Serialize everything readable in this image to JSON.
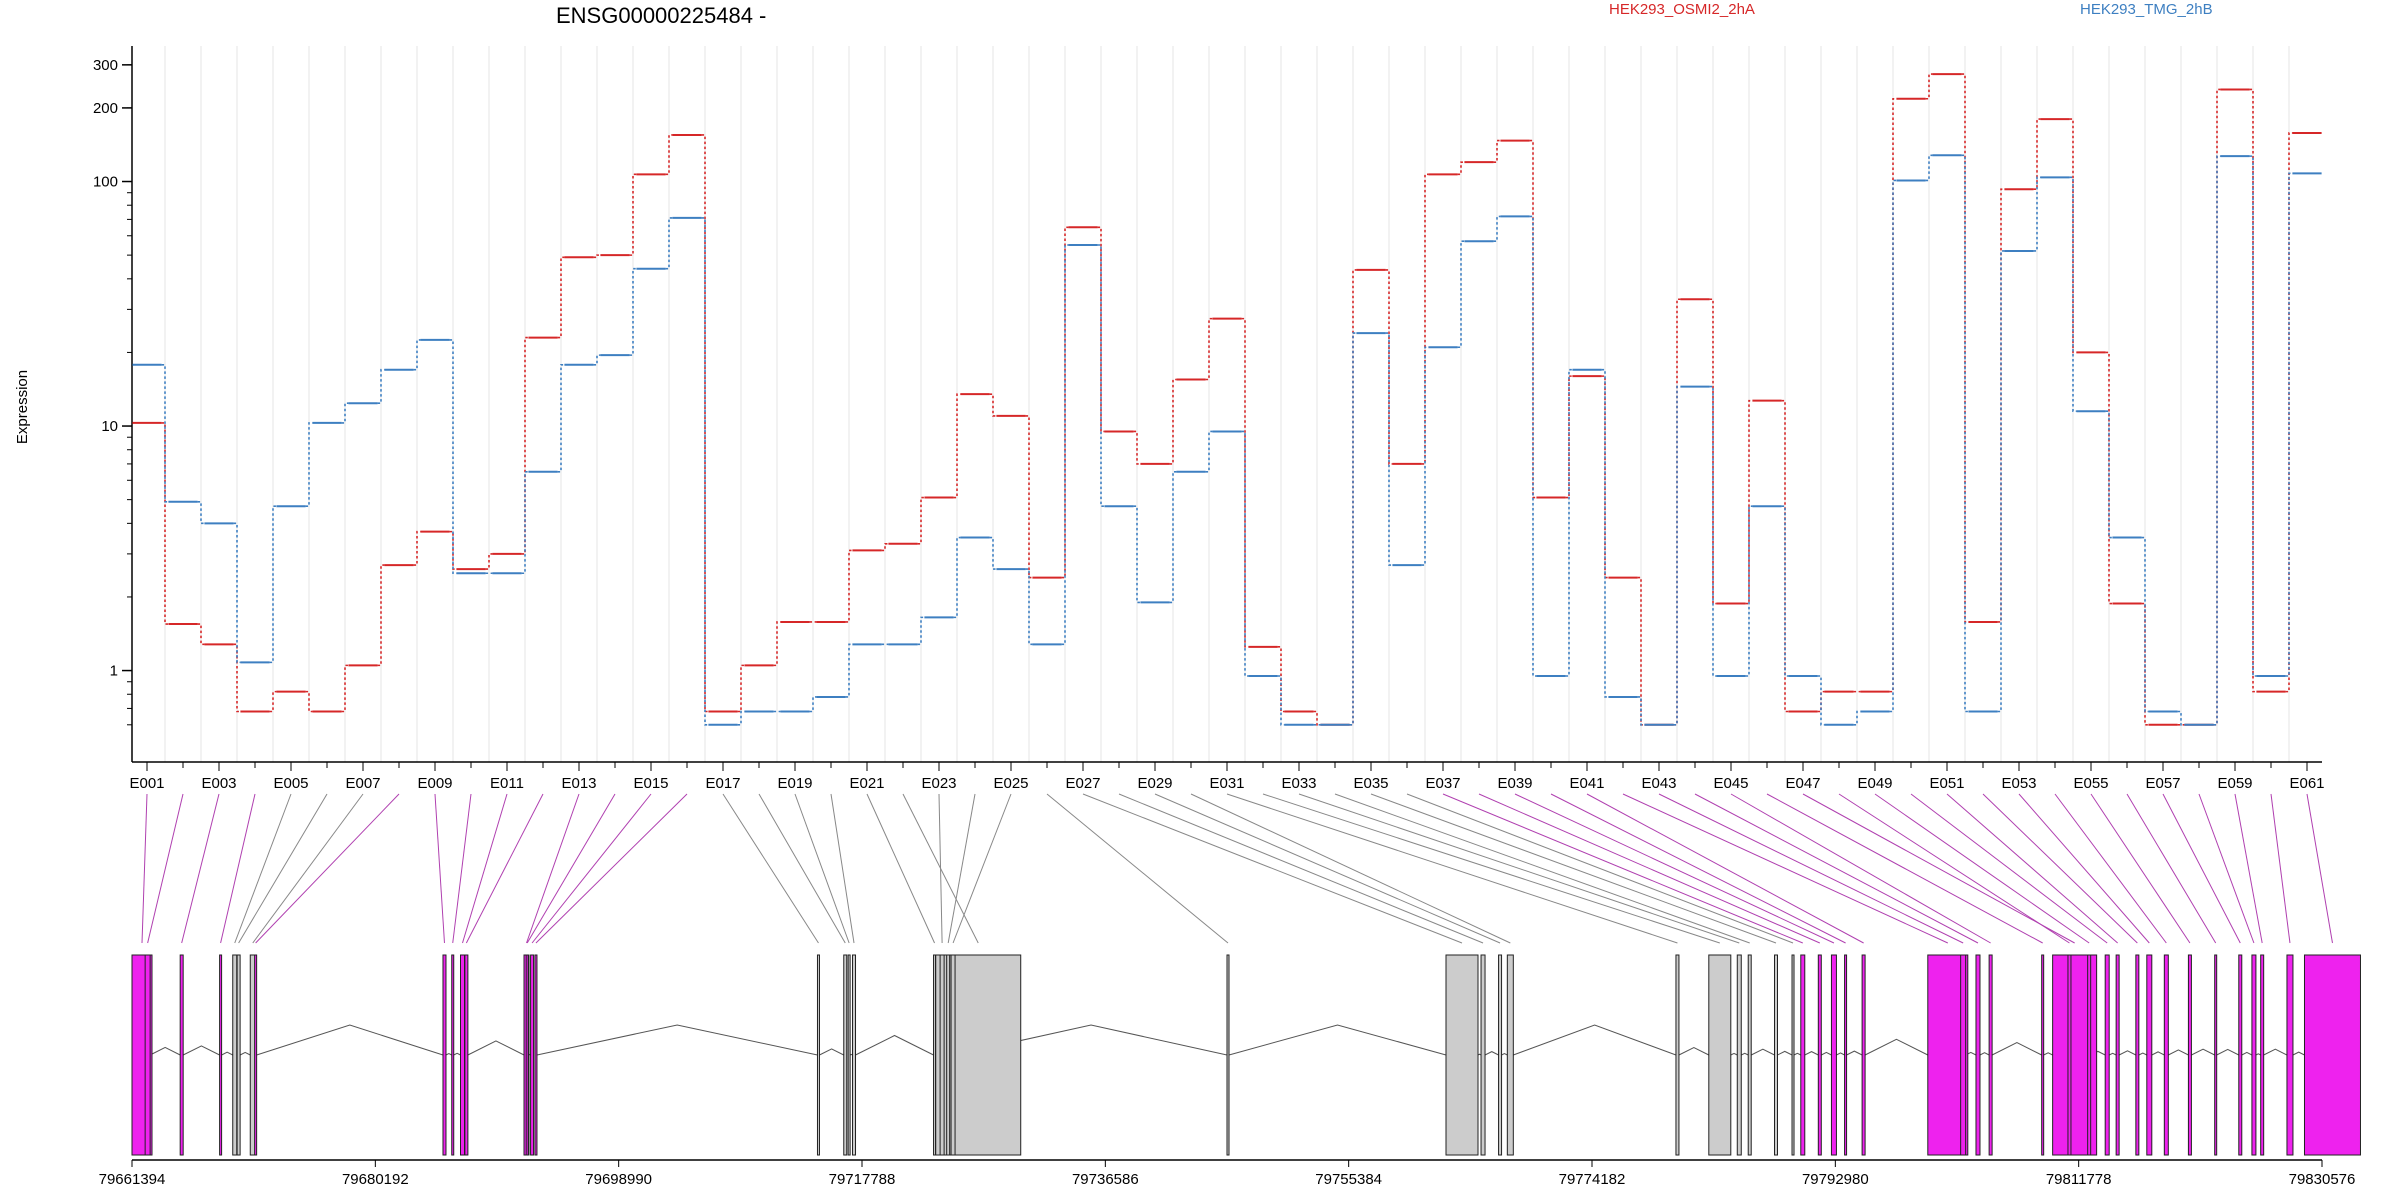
{
  "chart_data": {
    "type": "line",
    "title": "ENSG00000225484 -",
    "ylabel": "Expression",
    "yscale": "log",
    "ylim": [
      0.5,
      320
    ],
    "y_ticks": [
      1,
      10,
      100,
      200,
      300
    ],
    "grid": "vertical",
    "legend_position": "top-right",
    "categories": [
      "E001",
      "E002",
      "E003",
      "E004",
      "E005",
      "E006",
      "E007",
      "E008",
      "E009",
      "E010",
      "E011",
      "E012",
      "E013",
      "E014",
      "E015",
      "E016",
      "E017",
      "E018",
      "E019",
      "E020",
      "E021",
      "E022",
      "E023",
      "E024",
      "E025",
      "E026",
      "E027",
      "E028",
      "E029",
      "E030",
      "E031",
      "E032",
      "E033",
      "E034",
      "E035",
      "E036",
      "E037",
      "E038",
      "E039",
      "E040",
      "E041",
      "E042",
      "E043",
      "E044",
      "E045",
      "E046",
      "E047",
      "E048",
      "E049",
      "E050",
      "E051",
      "E052",
      "E053",
      "E054",
      "E055",
      "E056",
      "E057",
      "E058",
      "E059",
      "E060",
      "E061"
    ],
    "tick_labels": [
      "E001",
      "E003",
      "E005",
      "E007",
      "E009",
      "E011",
      "E013",
      "E015",
      "E017",
      "E019",
      "E021",
      "E023",
      "E025",
      "E027",
      "E029",
      "E031",
      "E033",
      "E035",
      "E037",
      "E039",
      "E041",
      "E043",
      "E045",
      "E047",
      "E049",
      "E051",
      "E053",
      "E055",
      "E057",
      "E059",
      "E061"
    ],
    "series": [
      {
        "name": "HEK293_OSMI2_2hA",
        "color": "#d62728",
        "values": [
          10.3,
          1.55,
          1.28,
          0.68,
          0.82,
          0.68,
          1.05,
          2.7,
          3.7,
          2.6,
          3.0,
          23,
          49,
          50,
          107,
          155,
          0.68,
          1.05,
          1.58,
          1.58,
          3.1,
          3.3,
          5.1,
          13.5,
          11,
          2.4,
          65,
          9.5,
          7,
          15.5,
          27.5,
          1.25,
          0.68,
          0.6,
          43.5,
          7,
          107,
          120,
          147,
          5.1,
          16,
          2.4,
          0.6,
          33,
          1.88,
          12.7,
          0.68,
          0.82,
          0.82,
          218,
          275,
          1.58,
          93,
          180,
          20,
          1.88,
          0.6,
          0.6,
          238,
          0.82,
          158
        ]
      },
      {
        "name": "HEK293_TMG_2hB",
        "color": "#3d7fc1",
        "values": [
          17.8,
          4.9,
          4.0,
          1.08,
          4.7,
          10.3,
          12.4,
          17,
          22.5,
          2.5,
          2.5,
          6.5,
          17.8,
          19.5,
          44,
          71,
          0.6,
          0.68,
          0.68,
          0.78,
          1.28,
          1.28,
          1.65,
          3.5,
          2.6,
          1.28,
          55,
          4.7,
          1.9,
          6.5,
          9.5,
          0.95,
          0.6,
          0.6,
          24,
          2.7,
          21,
          57,
          72,
          0.95,
          17,
          0.78,
          0.6,
          14.5,
          0.95,
          4.7,
          0.95,
          0.6,
          0.68,
          101,
          128,
          0.68,
          52,
          104,
          11.5,
          3.5,
          0.68,
          0.6,
          127,
          0.95,
          108
        ]
      }
    ],
    "genomic_axis": {
      "tick_labels": [
        "79661394",
        "79680192",
        "79698990",
        "79717788",
        "79736586",
        "79755384",
        "79774182",
        "79792980",
        "79811778",
        "79830576"
      ],
      "range": [
        79661394,
        79830576
      ]
    },
    "exon_highlight_color": "#ee22ee",
    "exon_default_color": "#cccccc",
    "highlighted_exons": [
      "E001",
      "E002",
      "E003",
      "E004",
      "E008",
      "E009",
      "E010",
      "E011",
      "E012",
      "E013",
      "E014",
      "E015",
      "E016",
      "E037",
      "E038",
      "E039",
      "E040",
      "E041",
      "E042",
      "E043",
      "E044",
      "E045",
      "E046",
      "E047",
      "E048",
      "E049",
      "E050",
      "E051",
      "E052",
      "E053",
      "E054",
      "E055",
      "E056",
      "E057",
      "E058",
      "E059",
      "E060",
      "E061"
    ]
  }
}
